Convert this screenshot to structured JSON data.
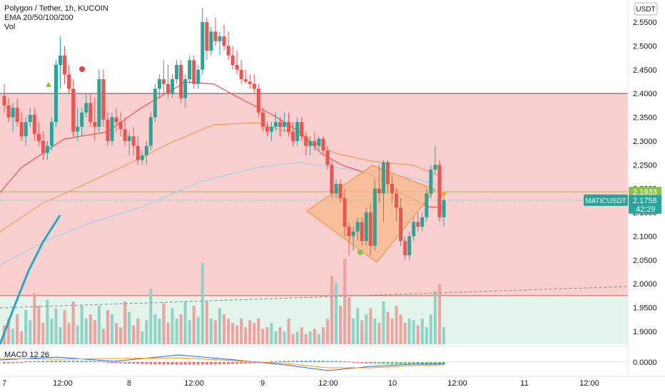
{
  "legend": {
    "symbol": "Polygon / Tether, 1h, KUCOIN",
    "ema": "EMA 20/50/100/200",
    "vol": "Vol"
  },
  "macd_label": "MACD 12 26",
  "currency_button": "USDT",
  "ticker_tag": "MATICUSDT",
  "price_tags": {
    "level": "2.1933",
    "last": "2.1758",
    "countdown": "42:29"
  },
  "colors": {
    "up": "#26a69a",
    "down": "#ef5350",
    "zone_red": "#f9d0cf",
    "zone_green": "#e3f4ea",
    "pattern_fill": "#f7b98b",
    "pattern_line": "#f08a34",
    "ema_fast": "#ef5350",
    "ema_mid": "#f59b54",
    "ema_slow": "#9fd4e3",
    "ema_long": "#21a8c9",
    "level_green": "#8bc34a",
    "level_red": "#e05050"
  },
  "chart_data": {
    "type": "candlestick",
    "price_axis": [
      "2.5500",
      "2.5000",
      "2.4500",
      "2.4000",
      "2.3500",
      "2.3000",
      "2.2500",
      "2.2000",
      "2.1500",
      "2.1000",
      "2.0500",
      "2.0000",
      "1.9500",
      "1.9000"
    ],
    "macd_axis": [
      "0.0000"
    ],
    "time_axis": [
      "7",
      "12:00",
      "8",
      "12:00",
      "9",
      "12:00",
      "10",
      "12:00",
      "11",
      "12:00"
    ],
    "levels": {
      "resistance": 2.4,
      "support": 1.975,
      "current_line": 2.1933
    },
    "candles": [
      [
        2.395,
        2.42,
        2.36,
        2.375
      ],
      [
        2.375,
        2.39,
        2.34,
        2.35
      ],
      [
        2.35,
        2.38,
        2.32,
        2.37
      ],
      [
        2.37,
        2.39,
        2.33,
        2.34
      ],
      [
        2.34,
        2.36,
        2.3,
        2.31
      ],
      [
        2.31,
        2.35,
        2.29,
        2.34
      ],
      [
        2.34,
        2.37,
        2.33,
        2.355
      ],
      [
        2.355,
        2.37,
        2.3,
        2.315
      ],
      [
        2.315,
        2.34,
        2.29,
        2.3
      ],
      [
        2.3,
        2.32,
        2.26,
        2.275
      ],
      [
        2.275,
        2.3,
        2.26,
        2.29
      ],
      [
        2.29,
        2.35,
        2.28,
        2.34
      ],
      [
        2.34,
        2.47,
        2.33,
        2.46
      ],
      [
        2.46,
        2.52,
        2.41,
        2.48
      ],
      [
        2.48,
        2.5,
        2.42,
        2.44
      ],
      [
        2.44,
        2.46,
        2.4,
        2.41
      ],
      [
        2.41,
        2.43,
        2.31,
        2.32
      ],
      [
        2.32,
        2.37,
        2.3,
        2.33
      ],
      [
        2.33,
        2.37,
        2.31,
        2.36
      ],
      [
        2.36,
        2.4,
        2.35,
        2.38
      ],
      [
        2.38,
        2.4,
        2.33,
        2.34
      ],
      [
        2.34,
        2.39,
        2.3,
        2.33
      ],
      [
        2.33,
        2.45,
        2.32,
        2.43
      ],
      [
        2.43,
        2.45,
        2.33,
        2.345
      ],
      [
        2.345,
        2.36,
        2.29,
        2.3
      ],
      [
        2.3,
        2.36,
        2.29,
        2.35
      ],
      [
        2.35,
        2.37,
        2.32,
        2.34
      ],
      [
        2.34,
        2.36,
        2.31,
        2.325
      ],
      [
        2.325,
        2.35,
        2.29,
        2.3
      ],
      [
        2.3,
        2.32,
        2.27,
        2.31
      ],
      [
        2.31,
        2.33,
        2.27,
        2.29
      ],
      [
        2.29,
        2.31,
        2.25,
        2.26
      ],
      [
        2.26,
        2.28,
        2.25,
        2.27
      ],
      [
        2.27,
        2.3,
        2.25,
        2.29
      ],
      [
        2.29,
        2.36,
        2.28,
        2.35
      ],
      [
        2.35,
        2.42,
        2.34,
        2.41
      ],
      [
        2.41,
        2.44,
        2.39,
        2.43
      ],
      [
        2.43,
        2.47,
        2.4,
        2.42
      ],
      [
        2.42,
        2.46,
        2.39,
        2.4
      ],
      [
        2.4,
        2.44,
        2.39,
        2.43
      ],
      [
        2.43,
        2.47,
        2.42,
        2.46
      ],
      [
        2.46,
        2.47,
        2.38,
        2.39
      ],
      [
        2.39,
        2.44,
        2.37,
        2.43
      ],
      [
        2.43,
        2.48,
        2.42,
        2.47
      ],
      [
        2.47,
        2.48,
        2.41,
        2.42
      ],
      [
        2.42,
        2.46,
        2.41,
        2.45
      ],
      [
        2.45,
        2.58,
        2.44,
        2.55
      ],
      [
        2.55,
        2.56,
        2.47,
        2.49
      ],
      [
        2.49,
        2.54,
        2.48,
        2.53
      ],
      [
        2.53,
        2.56,
        2.5,
        2.51
      ],
      [
        2.51,
        2.53,
        2.48,
        2.52
      ],
      [
        2.52,
        2.545,
        2.49,
        2.5
      ],
      [
        2.5,
        2.53,
        2.47,
        2.48
      ],
      [
        2.48,
        2.5,
        2.45,
        2.46
      ],
      [
        2.46,
        2.49,
        2.44,
        2.45
      ],
      [
        2.45,
        2.47,
        2.42,
        2.43
      ],
      [
        2.43,
        2.45,
        2.42,
        2.425
      ],
      [
        2.425,
        2.44,
        2.41,
        2.42
      ],
      [
        2.42,
        2.44,
        2.4,
        2.41
      ],
      [
        2.41,
        2.42,
        2.35,
        2.36
      ],
      [
        2.36,
        2.37,
        2.32,
        2.33
      ],
      [
        2.33,
        2.34,
        2.31,
        2.32
      ],
      [
        2.32,
        2.34,
        2.3,
        2.33
      ],
      [
        2.33,
        2.36,
        2.32,
        2.34
      ],
      [
        2.34,
        2.35,
        2.31,
        2.33
      ],
      [
        2.33,
        2.36,
        2.32,
        2.34
      ],
      [
        2.34,
        2.36,
        2.31,
        2.32
      ],
      [
        2.32,
        2.34,
        2.29,
        2.3
      ],
      [
        2.3,
        2.35,
        2.29,
        2.34
      ],
      [
        2.34,
        2.35,
        2.3,
        2.31
      ],
      [
        2.31,
        2.32,
        2.27,
        2.29
      ],
      [
        2.29,
        2.31,
        2.27,
        2.3
      ],
      [
        2.3,
        2.32,
        2.28,
        2.29
      ],
      [
        2.29,
        2.31,
        2.28,
        2.305
      ],
      [
        2.305,
        2.31,
        2.27,
        2.28
      ],
      [
        2.28,
        2.29,
        2.24,
        2.25
      ],
      [
        2.25,
        2.26,
        2.18,
        2.19
      ],
      [
        2.19,
        2.22,
        2.18,
        2.21
      ],
      [
        2.21,
        2.22,
        2.17,
        2.18
      ],
      [
        2.18,
        2.2,
        2.1,
        2.12
      ],
      [
        2.12,
        2.13,
        2.06,
        2.1
      ],
      [
        2.1,
        2.12,
        2.07,
        2.11
      ],
      [
        2.11,
        2.14,
        2.09,
        2.13
      ],
      [
        2.13,
        2.14,
        2.08,
        2.09
      ],
      [
        2.09,
        2.16,
        2.08,
        2.15
      ],
      [
        2.15,
        2.17,
        2.06,
        2.08
      ],
      [
        2.08,
        2.22,
        2.07,
        2.2
      ],
      [
        2.2,
        2.25,
        2.17,
        2.19
      ],
      [
        2.19,
        2.26,
        2.13,
        2.255
      ],
      [
        2.255,
        2.26,
        2.19,
        2.21
      ],
      [
        2.21,
        2.23,
        2.17,
        2.19
      ],
      [
        2.19,
        2.2,
        2.13,
        2.16
      ],
      [
        2.16,
        2.18,
        2.08,
        2.09
      ],
      [
        2.09,
        2.1,
        2.05,
        2.06
      ],
      [
        2.06,
        2.11,
        2.05,
        2.1
      ],
      [
        2.1,
        2.14,
        2.09,
        2.13
      ],
      [
        2.13,
        2.15,
        2.11,
        2.12
      ],
      [
        2.12,
        2.15,
        2.11,
        2.14
      ],
      [
        2.14,
        2.2,
        2.13,
        2.19
      ],
      [
        2.19,
        2.25,
        2.18,
        2.24
      ],
      [
        2.24,
        2.29,
        2.23,
        2.25
      ],
      [
        2.25,
        2.26,
        2.13,
        2.14
      ],
      [
        2.14,
        2.18,
        2.12,
        2.1758
      ]
    ],
    "volumes": [
      0.22,
      0.3,
      0.18,
      0.35,
      0.15,
      0.4,
      0.28,
      0.6,
      0.45,
      0.25,
      0.52,
      0.3,
      0.42,
      0.2,
      0.4,
      0.25,
      0.5,
      0.22,
      0.45,
      0.3,
      0.35,
      0.28,
      0.45,
      0.18,
      0.4,
      0.35,
      0.25,
      0.2,
      0.5,
      0.38,
      0.22,
      0.3,
      0.15,
      0.28,
      0.65,
      0.35,
      0.3,
      0.48,
      0.25,
      0.42,
      0.3,
      0.35,
      0.5,
      0.28,
      0.45,
      0.32,
      0.95,
      0.5,
      0.3,
      0.28,
      0.42,
      0.35,
      0.3,
      0.25,
      0.22,
      0.3,
      0.2,
      0.28,
      0.25,
      0.3,
      0.18,
      0.2,
      0.25,
      0.15,
      0.2,
      0.15,
      0.3,
      0.12,
      0.15,
      0.2,
      0.12,
      0.15,
      0.18,
      0.12,
      0.2,
      0.3,
      0.8,
      0.72,
      0.45,
      1.0,
      0.55,
      0.3,
      0.42,
      0.28,
      0.35,
      0.42,
      0.3,
      0.25,
      0.5,
      0.38,
      0.3,
      0.45,
      0.35,
      0.25,
      0.3,
      0.28,
      0.22,
      0.3,
      0.2,
      0.35,
      0.62,
      0.7,
      0.2
    ]
  }
}
